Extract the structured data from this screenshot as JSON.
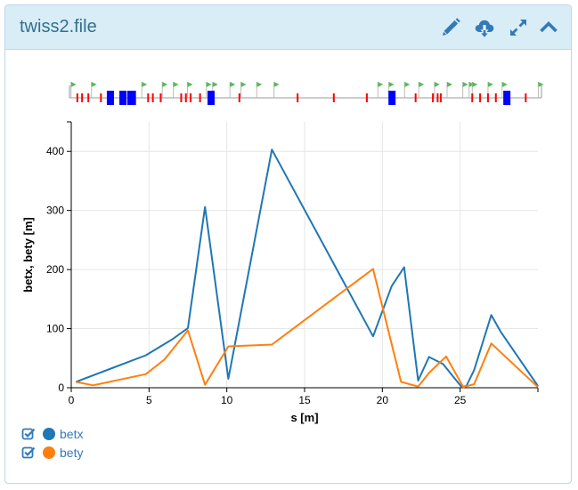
{
  "panel": {
    "title": "twiss2.file",
    "buttons": [
      {
        "name": "edit-button",
        "icon": "pencil-icon"
      },
      {
        "name": "download-button",
        "icon": "cloud-download-icon"
      },
      {
        "name": "expand-button",
        "icon": "expand-arrows-icon"
      },
      {
        "name": "collapse-button",
        "icon": "chevron-up-icon"
      }
    ]
  },
  "colors": {
    "header_bg": "#d9edf7",
    "header_text": "#31708f",
    "betx": "#1f77b4",
    "bety": "#ff7f0e",
    "dipole": "#0000ff",
    "quadrupole": "#ff0000",
    "monitor": "#5cb85c"
  },
  "lattice": {
    "s_range": [
      0,
      30
    ],
    "dipoles": [
      2.6,
      3.4,
      3.9,
      4.0,
      9.0,
      20.5,
      27.8
    ],
    "quadrupoles": [
      0.5,
      0.8,
      1.2,
      2.0,
      5.0,
      5.3,
      5.8,
      7.1,
      7.4,
      7.7,
      8.3,
      10.8,
      14.5,
      16.8,
      18.9,
      22.0,
      23.1,
      23.4,
      23.6,
      25.6,
      26.1,
      26.6,
      27.1,
      29.0
    ],
    "markers": [
      0.1,
      1.4,
      4.6,
      5.9,
      6.6,
      7.5,
      8.7,
      9.1,
      10.2,
      10.9,
      11.9,
      13.0,
      19.6,
      20.3,
      21.3,
      22.2,
      23.2,
      24.0,
      25.0,
      25.4,
      25.6,
      26.6,
      27.5,
      29.8
    ]
  },
  "chart_data": {
    "type": "line",
    "xlabel": "s [m]",
    "ylabel": "betx, bety [m]",
    "xlim": [
      0,
      30
    ],
    "ylim": [
      0,
      450
    ],
    "xticks": [
      0,
      5,
      10,
      15,
      20,
      25
    ],
    "yticks": [
      0,
      100,
      200,
      300,
      400
    ],
    "grid": true,
    "series": [
      {
        "name": "betx",
        "x": [
          0.3,
          4.8,
          6.5,
          7.5,
          8.6,
          10.1,
          12.9,
          19.4,
          20.6,
          21.4,
          22.3,
          23.0,
          23.9,
          25.1,
          25.4,
          25.9,
          27.0,
          27.6,
          30.0
        ],
        "y": [
          10,
          55,
          82,
          101,
          306,
          15,
          403,
          87,
          172,
          204,
          12,
          52,
          40,
          1,
          3,
          30,
          123,
          95,
          3
        ]
      },
      {
        "name": "bety",
        "x": [
          0.3,
          1.4,
          4.8,
          6.0,
          7.5,
          8.6,
          10.1,
          12.9,
          19.4,
          21.2,
          22.3,
          23.0,
          24.1,
          25.2,
          25.9,
          27.0,
          30.0
        ],
        "y": [
          10,
          4,
          23,
          48,
          97,
          5,
          70,
          73,
          201,
          10,
          2,
          25,
          53,
          1,
          6,
          75,
          1
        ]
      }
    ]
  },
  "legend": {
    "items": [
      {
        "label": "betx",
        "checked": true
      },
      {
        "label": "bety",
        "checked": true
      }
    ]
  }
}
